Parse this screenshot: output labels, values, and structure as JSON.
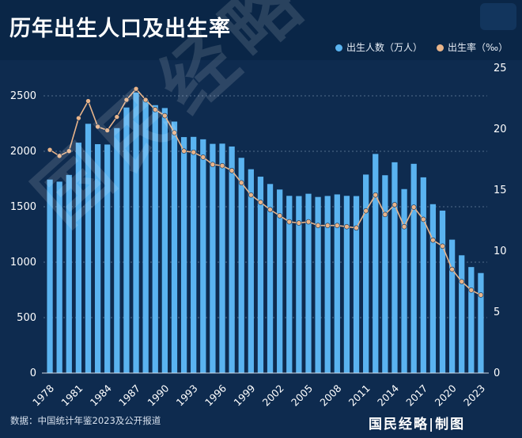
{
  "title": "历年出生人口及出生率",
  "legend": {
    "births_label": "出生人数（万人）",
    "rate_label": "出生率（‰）"
  },
  "source": "数据：中国统计年鉴2023及公开报道",
  "brand": "国民经略|制图",
  "watermark": "国民经略",
  "colors": {
    "bar": "#5ab3f0",
    "line": "#e8b48a",
    "background": "#0e2b4f",
    "grid": "#8fa6c2"
  },
  "chart_data": {
    "type": "bar",
    "x": [
      1978,
      1979,
      1980,
      1981,
      1982,
      1983,
      1984,
      1985,
      1986,
      1987,
      1988,
      1989,
      1990,
      1991,
      1992,
      1993,
      1994,
      1995,
      1996,
      1997,
      1998,
      1999,
      2000,
      2001,
      2002,
      2003,
      2004,
      2005,
      2006,
      2007,
      2008,
      2009,
      2010,
      2011,
      2012,
      2013,
      2014,
      2015,
      2016,
      2017,
      2018,
      2019,
      2020,
      2021,
      2022,
      2023
    ],
    "x_tick_labels": [
      "1978",
      "1981",
      "1984",
      "1987",
      "1990",
      "1993",
      "1996",
      "1999",
      "2002",
      "2005",
      "2008",
      "2011",
      "2014",
      "2017",
      "2020",
      "2023"
    ],
    "series": [
      {
        "name": "出生人数（万人）",
        "type": "bar",
        "axis": "left",
        "values": [
          1745,
          1726,
          1787,
          2078,
          2248,
          2064,
          2061,
          2209,
          2395,
          2530,
          2463,
          2416,
          2390,
          2268,
          2128,
          2130,
          2108,
          2067,
          2069,
          2043,
          1941,
          1838,
          1771,
          1705,
          1655,
          1598,
          1596,
          1617,
          1588,
          1597,
          1611,
          1598,
          1596,
          1790,
          1976,
          1784,
          1901,
          1659,
          1887,
          1765,
          1523,
          1465,
          1203,
          1062,
          956,
          902
        ]
      },
      {
        "name": "出生率（‰）",
        "type": "line",
        "axis": "right",
        "values": [
          18.3,
          17.8,
          18.2,
          20.9,
          22.3,
          20.2,
          19.9,
          21.0,
          22.4,
          23.3,
          22.4,
          21.6,
          21.1,
          19.7,
          18.2,
          18.1,
          17.7,
          17.1,
          17.0,
          16.6,
          15.6,
          14.6,
          14.0,
          13.4,
          12.9,
          12.4,
          12.3,
          12.4,
          12.1,
          12.1,
          12.1,
          12.0,
          11.9,
          13.3,
          14.6,
          13.0,
          13.8,
          12.0,
          13.6,
          12.6,
          10.9,
          10.4,
          8.5,
          7.5,
          6.8,
          6.4
        ]
      }
    ],
    "y_left": {
      "ticks": [
        0,
        500,
        1000,
        1500,
        2000,
        2500
      ],
      "range": [
        0,
        2750
      ]
    },
    "y_right": {
      "ticks": [
        0,
        5,
        10,
        15,
        20,
        25
      ],
      "range": [
        0,
        25
      ]
    },
    "grid": true,
    "legend_position": "top-right"
  }
}
